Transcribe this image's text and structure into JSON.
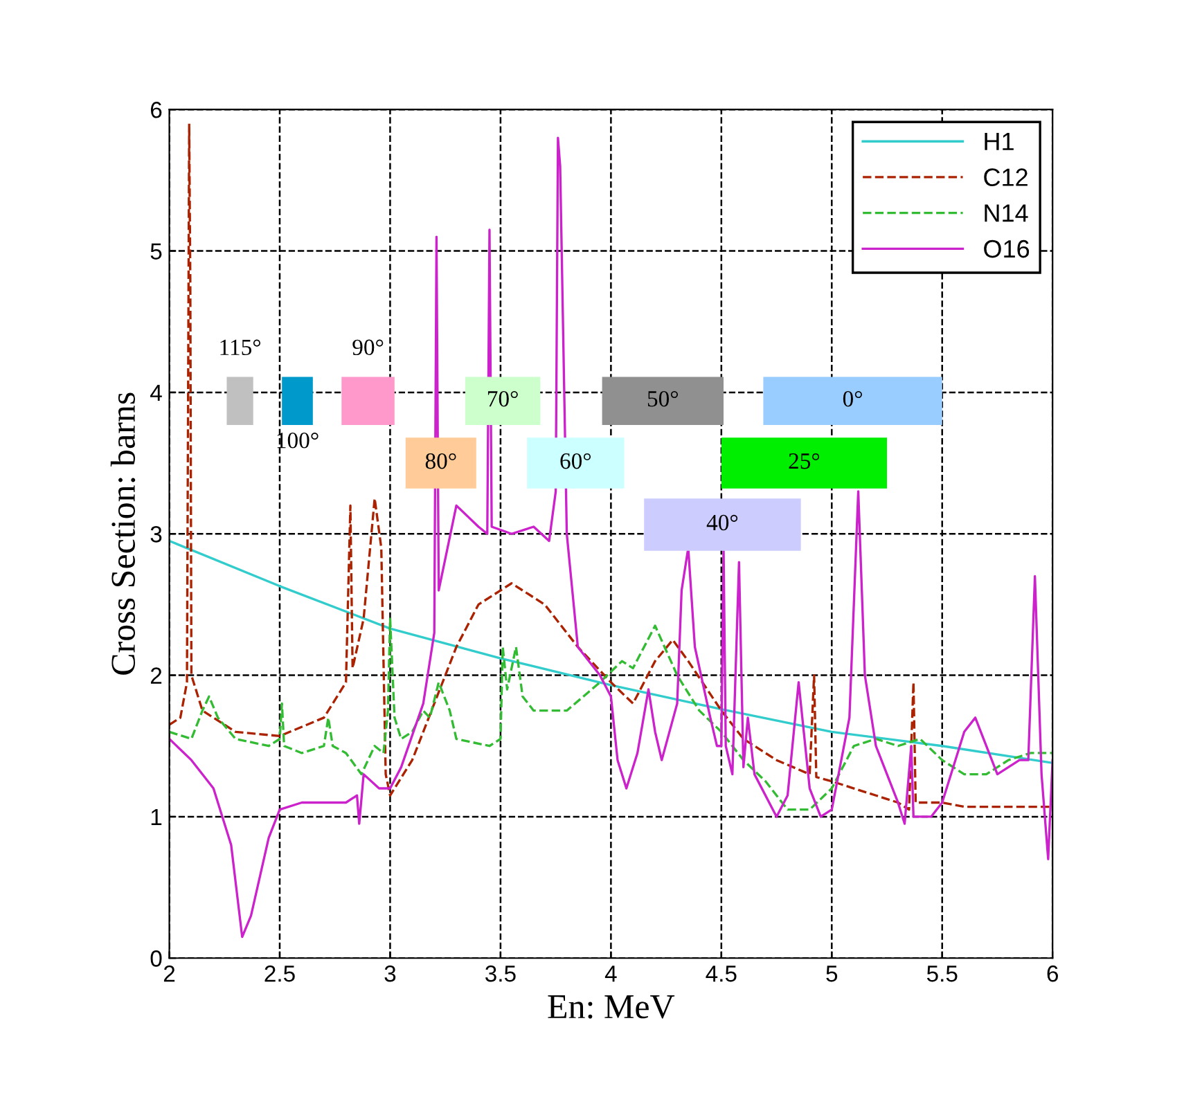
{
  "chart_data": {
    "type": "line",
    "xlabel": "En: MeV",
    "ylabel": "Cross Section: barns",
    "xlim": [
      2,
      6
    ],
    "ylim": [
      0,
      6
    ],
    "xticks": [
      2,
      2.5,
      3,
      3.5,
      4,
      4.5,
      5,
      5.5,
      6
    ],
    "yticks": [
      0,
      1,
      2,
      3,
      4,
      5,
      6
    ],
    "grid": true,
    "legend": "top right",
    "series": [
      {
        "name": "H1",
        "color": "#33cccc",
        "line_style": "solid",
        "x": [
          2.0,
          2.5,
          3.0,
          3.5,
          4.0,
          4.5,
          5.0,
          5.5,
          6.0
        ],
        "values": [
          2.95,
          2.63,
          2.33,
          2.12,
          1.93,
          1.76,
          1.6,
          1.5,
          1.38
        ]
      },
      {
        "name": "C12",
        "color": "#aa2200",
        "line_style": "dashed",
        "x": [
          2.0,
          2.05,
          2.08,
          2.09,
          2.095,
          2.1,
          2.15,
          2.3,
          2.5,
          2.7,
          2.8,
          2.82,
          2.83,
          2.88,
          2.93,
          2.96,
          2.98,
          3.0,
          3.1,
          3.2,
          3.3,
          3.4,
          3.55,
          3.7,
          3.85,
          4.0,
          4.1,
          4.2,
          4.28,
          4.35,
          4.5,
          4.6,
          4.75,
          4.9,
          4.92,
          4.93,
          5.0,
          5.1,
          5.2,
          5.3,
          5.35,
          5.37,
          5.38,
          5.5,
          5.6,
          6.0
        ],
        "values": [
          1.65,
          1.7,
          1.95,
          5.9,
          4.8,
          2.0,
          1.75,
          1.6,
          1.57,
          1.7,
          1.95,
          3.2,
          2.05,
          2.4,
          3.25,
          2.9,
          1.3,
          1.15,
          1.4,
          1.8,
          2.2,
          2.5,
          2.65,
          2.5,
          2.2,
          1.95,
          1.8,
          2.1,
          2.25,
          2.1,
          1.75,
          1.55,
          1.4,
          1.3,
          2.0,
          1.28,
          1.25,
          1.2,
          1.15,
          1.1,
          1.05,
          1.95,
          1.1,
          1.1,
          1.07,
          1.07
        ]
      },
      {
        "name": "N14",
        "color": "#33bb33",
        "line_style": "dashed",
        "x": [
          2.0,
          2.1,
          2.15,
          2.18,
          2.22,
          2.3,
          2.45,
          2.5,
          2.51,
          2.52,
          2.6,
          2.7,
          2.72,
          2.74,
          2.8,
          2.87,
          2.93,
          2.97,
          2.99,
          3.0,
          3.02,
          3.05,
          3.1,
          3.15,
          3.18,
          3.22,
          3.27,
          3.3,
          3.45,
          3.5,
          3.51,
          3.53,
          3.57,
          3.6,
          3.65,
          3.8,
          3.95,
          4.05,
          4.1,
          4.2,
          4.3,
          4.4,
          4.5,
          4.6,
          4.7,
          4.8,
          4.9,
          5.0,
          5.1,
          5.2,
          5.3,
          5.4,
          5.5,
          5.6,
          5.7,
          5.8,
          5.9,
          6.0
        ],
        "values": [
          1.6,
          1.55,
          1.75,
          1.85,
          1.7,
          1.55,
          1.5,
          1.55,
          1.8,
          1.5,
          1.45,
          1.5,
          1.7,
          1.5,
          1.45,
          1.3,
          1.5,
          1.45,
          1.75,
          2.4,
          1.7,
          1.55,
          1.6,
          1.75,
          1.7,
          1.95,
          1.75,
          1.55,
          1.5,
          1.55,
          2.2,
          1.9,
          2.2,
          1.85,
          1.75,
          1.75,
          1.95,
          2.1,
          2.05,
          2.35,
          2.0,
          1.75,
          1.6,
          1.4,
          1.25,
          1.05,
          1.05,
          1.2,
          1.5,
          1.55,
          1.5,
          1.55,
          1.4,
          1.3,
          1.3,
          1.4,
          1.45,
          1.45
        ]
      },
      {
        "name": "O16",
        "color": "#cc22cc",
        "line_style": "solid",
        "x": [
          2.0,
          2.1,
          2.2,
          2.28,
          2.33,
          2.37,
          2.45,
          2.5,
          2.6,
          2.8,
          2.85,
          2.86,
          2.88,
          2.95,
          3.0,
          3.05,
          3.15,
          3.2,
          3.21,
          3.22,
          3.3,
          3.4,
          3.44,
          3.45,
          3.46,
          3.55,
          3.65,
          3.72,
          3.75,
          3.76,
          3.77,
          3.8,
          3.85,
          3.95,
          4.0,
          4.03,
          4.07,
          4.12,
          4.17,
          4.2,
          4.23,
          4.3,
          4.32,
          4.35,
          4.38,
          4.45,
          4.48,
          4.5,
          4.51,
          4.52,
          4.55,
          4.58,
          4.6,
          4.62,
          4.65,
          4.75,
          4.8,
          4.85,
          4.9,
          4.95,
          5.0,
          5.08,
          5.12,
          5.15,
          5.2,
          5.3,
          5.33,
          5.36,
          5.37,
          5.45,
          5.5,
          5.6,
          5.65,
          5.75,
          5.85,
          5.89,
          5.92,
          5.95,
          5.98,
          6.0
        ],
        "values": [
          1.55,
          1.4,
          1.2,
          0.8,
          0.15,
          0.3,
          0.85,
          1.05,
          1.1,
          1.1,
          1.15,
          0.95,
          1.3,
          1.2,
          1.2,
          1.35,
          1.8,
          2.3,
          5.1,
          2.6,
          3.2,
          3.05,
          3.0,
          5.15,
          3.05,
          3.0,
          3.05,
          2.95,
          3.3,
          5.8,
          5.6,
          3.0,
          2.2,
          2.0,
          1.85,
          1.4,
          1.2,
          1.45,
          1.9,
          1.6,
          1.4,
          1.8,
          2.6,
          2.9,
          2.2,
          1.7,
          1.5,
          1.5,
          2.9,
          1.5,
          1.3,
          2.8,
          1.35,
          1.7,
          1.3,
          1.0,
          1.15,
          1.95,
          1.2,
          1.0,
          1.05,
          1.7,
          3.3,
          2.0,
          1.5,
          1.1,
          0.95,
          1.5,
          1.0,
          1.0,
          1.1,
          1.6,
          1.7,
          1.3,
          1.4,
          1.4,
          2.7,
          1.3,
          0.7,
          1.4
        ]
      }
    ],
    "bands": [
      {
        "axis": "x",
        "from": 2.26,
        "to": 2.38,
        "label": "115°",
        "color": "#c0c0c0"
      },
      {
        "axis": "x",
        "from": 2.51,
        "to": 2.65,
        "label": "100°",
        "color": "#0099cc"
      },
      {
        "axis": "x",
        "from": 2.78,
        "to": 3.02,
        "label": "90°",
        "color": "#ff99cc"
      },
      {
        "axis": "x",
        "from": 3.07,
        "to": 3.39,
        "label": "80°",
        "color": "#ffcc99"
      },
      {
        "axis": "x",
        "from": 3.34,
        "to": 3.68,
        "label": "70°",
        "color": "#ccffcc"
      },
      {
        "axis": "x",
        "from": 3.62,
        "to": 4.06,
        "label": "60°",
        "color": "#ccffff"
      },
      {
        "axis": "x",
        "from": 3.96,
        "to": 4.51,
        "label": "50°",
        "color": "#909090"
      },
      {
        "axis": "x",
        "from": 4.15,
        "to": 4.86,
        "label": "40°",
        "color": "#ccccff"
      },
      {
        "axis": "x",
        "from": 4.5,
        "to": 5.25,
        "label": "25°",
        "color": "#00ee00"
      },
      {
        "axis": "x",
        "from": 4.69,
        "to": 5.5,
        "label": "0°",
        "color": "#99ccff"
      }
    ]
  }
}
